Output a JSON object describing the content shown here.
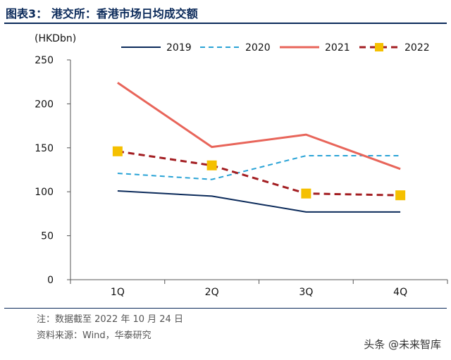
{
  "figure": {
    "title": "图表3： 港交所：香港市场日均成交额",
    "note": "注：数据截至 2022 年 10 月 24 日",
    "source": "资料来源：Wind，华泰研究",
    "watermark": "头条 @未来智库"
  },
  "chart_data": {
    "type": "line",
    "title": "港交所：香港市场日均成交额",
    "ylabel": "(HKDbn)",
    "xlabel": "",
    "categories": [
      "1Q",
      "2Q",
      "3Q",
      "4Q"
    ],
    "ylim": [
      0,
      250
    ],
    "yticks": [
      0,
      50,
      100,
      150,
      200,
      250
    ],
    "legend_position": "top",
    "series": [
      {
        "name": "2019",
        "values": [
          101,
          95,
          77,
          77
        ],
        "color": "#0b2a5a",
        "style": "solid",
        "marker": "none"
      },
      {
        "name": "2020",
        "values": [
          121,
          114,
          141,
          141
        ],
        "color": "#29a3d6",
        "style": "dashed",
        "marker": "none"
      },
      {
        "name": "2021",
        "values": [
          224,
          151,
          165,
          126
        ],
        "color": "#e8655a",
        "style": "solid",
        "marker": "none"
      },
      {
        "name": "2022",
        "values": [
          146,
          130,
          98,
          96
        ],
        "color": "#a31e22",
        "style": "dashed",
        "marker": "square",
        "marker_color": "#f5c000"
      }
    ]
  }
}
